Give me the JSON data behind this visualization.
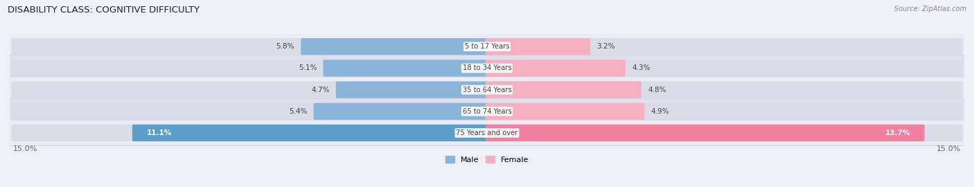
{
  "title": "DISABILITY CLASS: COGNITIVE DIFFICULTY",
  "source": "Source: ZipAtlas.com",
  "categories": [
    "5 to 17 Years",
    "18 to 34 Years",
    "35 to 64 Years",
    "65 to 74 Years",
    "75 Years and over"
  ],
  "male_values": [
    5.8,
    5.1,
    4.7,
    5.4,
    11.1
  ],
  "female_values": [
    3.2,
    4.3,
    4.8,
    4.9,
    13.7
  ],
  "max_val": 15.0,
  "male_color_normal": "#8ab4d8",
  "male_color_highlight": "#5b9ec9",
  "female_color_normal": "#f5afc0",
  "female_color_highlight": "#f07fa0",
  "male_label": "Male",
  "female_label": "Female",
  "bar_bg_color": "#dcdce8",
  "row_colors": [
    "#ebebf4",
    "#dfe0ec",
    "#ebebf4",
    "#dfe0ec",
    "#ebebf4"
  ],
  "label_color": "#444444",
  "title_color": "#222222",
  "axis_label_color": "#666666",
  "value_fontsize": 7.5,
  "title_fontsize": 9.5
}
